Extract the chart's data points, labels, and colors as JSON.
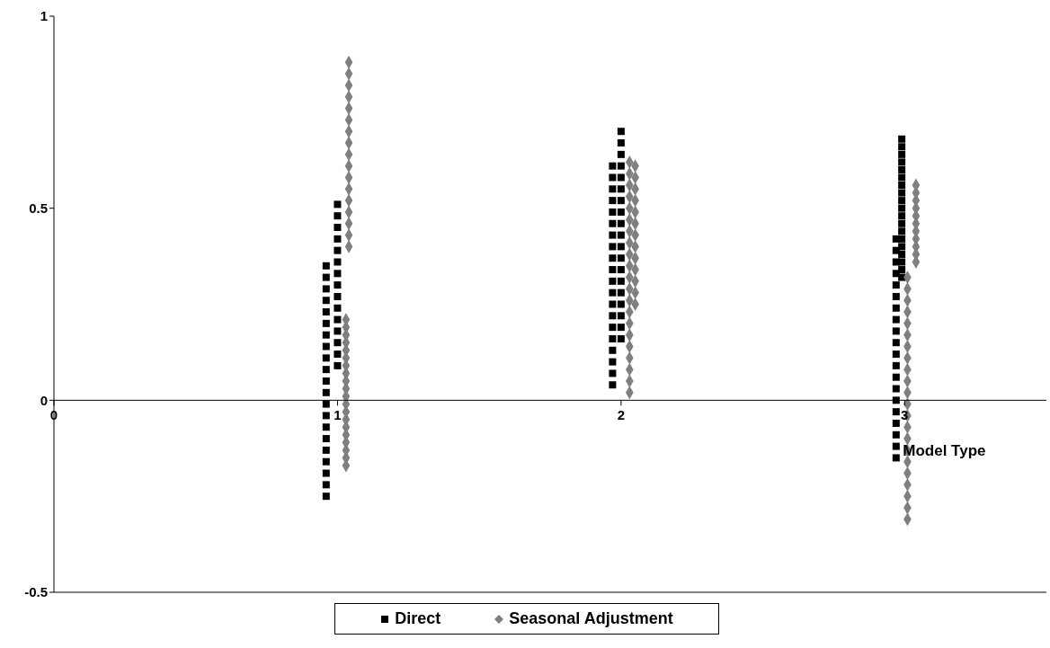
{
  "chart_data": {
    "type": "scatter",
    "xlabel": "Model Type",
    "xlim": [
      0,
      3.5
    ],
    "xticks": [
      0,
      1,
      2,
      3
    ],
    "ylim": [
      -0.5,
      1
    ],
    "yticks": [
      -0.5,
      0,
      0.5,
      1
    ],
    "grid": false,
    "legend": "bottom",
    "series": [
      {
        "name": "Direct",
        "color": "#000000",
        "marker": "square",
        "x": [
          0.96,
          0.96,
          0.96,
          0.96,
          0.96,
          0.96,
          0.96,
          0.96,
          0.96,
          0.96,
          0.96,
          0.96,
          0.96,
          0.96,
          0.96,
          0.96,
          0.96,
          0.96,
          0.96,
          0.96,
          0.96,
          1.0,
          1.0,
          1.0,
          1.0,
          1.0,
          1.0,
          1.0,
          1.0,
          1.0,
          1.0,
          1.0,
          1.0,
          1.0,
          1.0,
          1.0,
          1.97,
          1.97,
          1.97,
          1.97,
          1.97,
          1.97,
          1.97,
          1.97,
          1.97,
          1.97,
          1.97,
          1.97,
          1.97,
          1.97,
          1.97,
          1.97,
          1.97,
          1.97,
          1.97,
          1.97,
          2.0,
          2.0,
          2.0,
          2.0,
          2.0,
          2.0,
          2.0,
          2.0,
          2.0,
          2.0,
          2.0,
          2.0,
          2.0,
          2.0,
          2.0,
          2.0,
          2.0,
          2.0,
          2.0,
          2.97,
          2.97,
          2.97,
          2.97,
          2.97,
          2.97,
          2.97,
          2.97,
          2.97,
          2.97,
          2.97,
          2.97,
          2.97,
          2.97,
          2.97,
          2.97,
          2.97,
          2.97,
          2.97,
          2.97,
          2.99,
          2.99,
          2.99,
          2.99,
          2.99,
          2.99,
          2.99,
          2.99,
          2.99,
          2.99,
          2.99,
          2.99,
          2.99,
          2.99,
          2.99,
          2.99,
          2.99,
          2.99,
          2.99
        ],
        "values": [
          -0.25,
          -0.22,
          -0.19,
          -0.16,
          -0.13,
          -0.1,
          -0.07,
          -0.04,
          -0.01,
          0.02,
          0.05,
          0.08,
          0.11,
          0.14,
          0.17,
          0.2,
          0.23,
          0.26,
          0.29,
          0.32,
          0.35,
          0.09,
          0.12,
          0.15,
          0.18,
          0.21,
          0.24,
          0.27,
          0.3,
          0.33,
          0.36,
          0.39,
          0.42,
          0.45,
          0.48,
          0.51,
          0.04,
          0.07,
          0.1,
          0.13,
          0.16,
          0.19,
          0.22,
          0.25,
          0.28,
          0.31,
          0.34,
          0.37,
          0.4,
          0.43,
          0.46,
          0.49,
          0.52,
          0.55,
          0.58,
          0.61,
          0.16,
          0.19,
          0.22,
          0.25,
          0.28,
          0.31,
          0.34,
          0.37,
          0.4,
          0.43,
          0.46,
          0.49,
          0.52,
          0.55,
          0.58,
          0.61,
          0.64,
          0.67,
          0.7,
          -0.15,
          -0.12,
          -0.09,
          -0.06,
          -0.03,
          0,
          0.03,
          0.06,
          0.09,
          0.12,
          0.15,
          0.18,
          0.21,
          0.24,
          0.27,
          0.3,
          0.33,
          0.36,
          0.39,
          0.42,
          0.32,
          0.34,
          0.36,
          0.38,
          0.4,
          0.42,
          0.44,
          0.46,
          0.48,
          0.5,
          0.52,
          0.54,
          0.56,
          0.58,
          0.6,
          0.62,
          0.64,
          0.66,
          0.68
        ]
      },
      {
        "name": "Seasonal Adjustment",
        "color": "#7f7f7f",
        "marker": "diamond",
        "x": [
          1.03,
          1.03,
          1.03,
          1.03,
          1.03,
          1.03,
          1.03,
          1.03,
          1.03,
          1.03,
          1.03,
          1.03,
          1.03,
          1.03,
          1.03,
          1.03,
          1.03,
          1.03,
          1.03,
          1.03,
          1.04,
          1.04,
          1.04,
          1.04,
          1.04,
          1.04,
          1.04,
          1.04,
          1.04,
          1.04,
          1.04,
          1.04,
          1.04,
          1.04,
          1.04,
          1.04,
          1.04,
          2.03,
          2.03,
          2.03,
          2.03,
          2.03,
          2.03,
          2.03,
          2.03,
          2.03,
          2.03,
          2.03,
          2.03,
          2.03,
          2.03,
          2.03,
          2.03,
          2.03,
          2.03,
          2.03,
          2.03,
          2.03,
          2.05,
          2.05,
          2.05,
          2.05,
          2.05,
          2.05,
          2.05,
          2.05,
          2.05,
          2.05,
          2.05,
          2.05,
          2.05,
          3.01,
          3.01,
          3.01,
          3.01,
          3.01,
          3.01,
          3.01,
          3.01,
          3.01,
          3.01,
          3.01,
          3.01,
          3.01,
          3.01,
          3.01,
          3.01,
          3.01,
          3.01,
          3.01,
          3.01,
          3.01,
          3.01,
          3.04,
          3.04,
          3.04,
          3.04,
          3.04,
          3.04,
          3.04,
          3.04,
          3.04,
          3.04,
          3.04
        ],
        "values": [
          -0.17,
          -0.15,
          -0.13,
          -0.11,
          -0.09,
          -0.07,
          -0.05,
          -0.03,
          -0.01,
          0.01,
          0.03,
          0.05,
          0.07,
          0.09,
          0.11,
          0.13,
          0.15,
          0.17,
          0.19,
          0.21,
          0.4,
          0.43,
          0.46,
          0.49,
          0.52,
          0.55,
          0.58,
          0.61,
          0.64,
          0.67,
          0.7,
          0.73,
          0.76,
          0.79,
          0.82,
          0.85,
          0.88,
          0.02,
          0.05,
          0.08,
          0.11,
          0.14,
          0.17,
          0.2,
          0.23,
          0.26,
          0.29,
          0.32,
          0.35,
          0.38,
          0.41,
          0.44,
          0.47,
          0.5,
          0.53,
          0.56,
          0.59,
          0.62,
          0.25,
          0.28,
          0.31,
          0.34,
          0.37,
          0.4,
          0.43,
          0.46,
          0.49,
          0.52,
          0.55,
          0.58,
          0.61,
          -0.31,
          -0.28,
          -0.25,
          -0.22,
          -0.19,
          -0.16,
          -0.13,
          -0.1,
          -0.07,
          -0.04,
          -0.01,
          0.02,
          0.05,
          0.08,
          0.11,
          0.14,
          0.17,
          0.2,
          0.23,
          0.26,
          0.29,
          0.32,
          0.36,
          0.38,
          0.4,
          0.42,
          0.44,
          0.46,
          0.48,
          0.5,
          0.52,
          0.54,
          0.56
        ]
      }
    ]
  }
}
